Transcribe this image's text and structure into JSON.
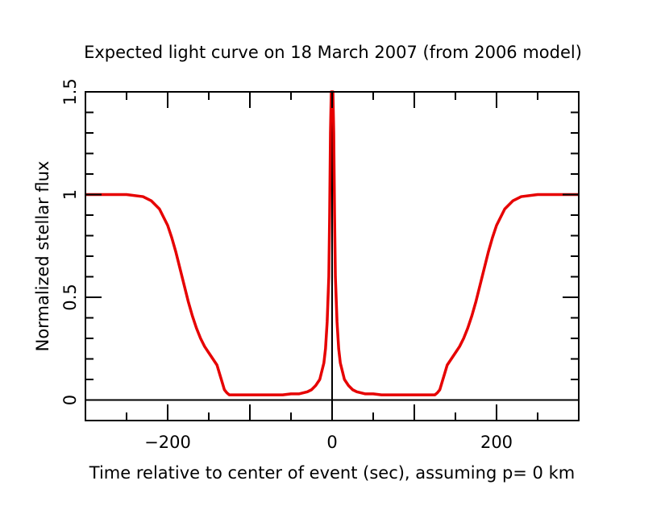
{
  "chart_data": {
    "type": "line",
    "title": "Expected light curve on 18 March 2007 (from 2006 model)",
    "xlabel": "Time relative to center of event (sec), assuming p= 0 km",
    "ylabel": "Normalized stellar flux",
    "xlim": [
      -300,
      300
    ],
    "ylim": [
      -0.1,
      1.5
    ],
    "x_ticks": [
      -200,
      0,
      200
    ],
    "x_tick_labels": [
      "−200",
      "0",
      "200"
    ],
    "y_ticks": [
      0,
      0.5,
      1,
      1.5
    ],
    "y_tick_labels": [
      "0",
      "0.5",
      "1",
      "1.5"
    ],
    "grid": false,
    "reference_lines": [
      {
        "orientation": "horizontal",
        "value": 0
      },
      {
        "orientation": "vertical",
        "value": 0
      }
    ],
    "series": [
      {
        "color": "#e60000",
        "x": [
          -300,
          -250,
          -230,
          -220,
          -210,
          -200,
          -195,
          -190,
          -185,
          -180,
          -175,
          -170,
          -165,
          -160,
          -155,
          -150,
          -145,
          -140,
          -137,
          -134,
          -131,
          -128,
          -125,
          -120,
          -110,
          -100,
          -90,
          -80,
          -70,
          -60,
          -50,
          -40,
          -30,
          -25,
          -20,
          -15,
          -10,
          -8,
          -6,
          -4,
          -3,
          -2,
          -1,
          0,
          1,
          2,
          3,
          4,
          6,
          8,
          10,
          15,
          20,
          25,
          30,
          40,
          50,
          60,
          70,
          80,
          90,
          100,
          110,
          120,
          125,
          128,
          131,
          134,
          137,
          140,
          145,
          150,
          155,
          160,
          165,
          170,
          175,
          180,
          185,
          190,
          195,
          200,
          210,
          220,
          230,
          250,
          300
        ],
        "y": [
          1.0,
          1.0,
          0.99,
          0.97,
          0.93,
          0.85,
          0.79,
          0.72,
          0.64,
          0.56,
          0.48,
          0.41,
          0.35,
          0.3,
          0.26,
          0.23,
          0.2,
          0.17,
          0.13,
          0.09,
          0.05,
          0.035,
          0.025,
          0.025,
          0.025,
          0.025,
          0.025,
          0.025,
          0.025,
          0.025,
          0.03,
          0.03,
          0.04,
          0.05,
          0.07,
          0.1,
          0.18,
          0.25,
          0.38,
          0.6,
          0.9,
          1.3,
          1.5,
          1.5,
          1.5,
          1.3,
          0.9,
          0.6,
          0.38,
          0.25,
          0.18,
          0.1,
          0.07,
          0.05,
          0.04,
          0.03,
          0.03,
          0.025,
          0.025,
          0.025,
          0.025,
          0.025,
          0.025,
          0.025,
          0.025,
          0.035,
          0.05,
          0.09,
          0.13,
          0.17,
          0.2,
          0.23,
          0.26,
          0.3,
          0.35,
          0.41,
          0.48,
          0.56,
          0.64,
          0.72,
          0.79,
          0.85,
          0.93,
          0.97,
          0.99,
          1.0,
          1.0
        ]
      }
    ]
  }
}
